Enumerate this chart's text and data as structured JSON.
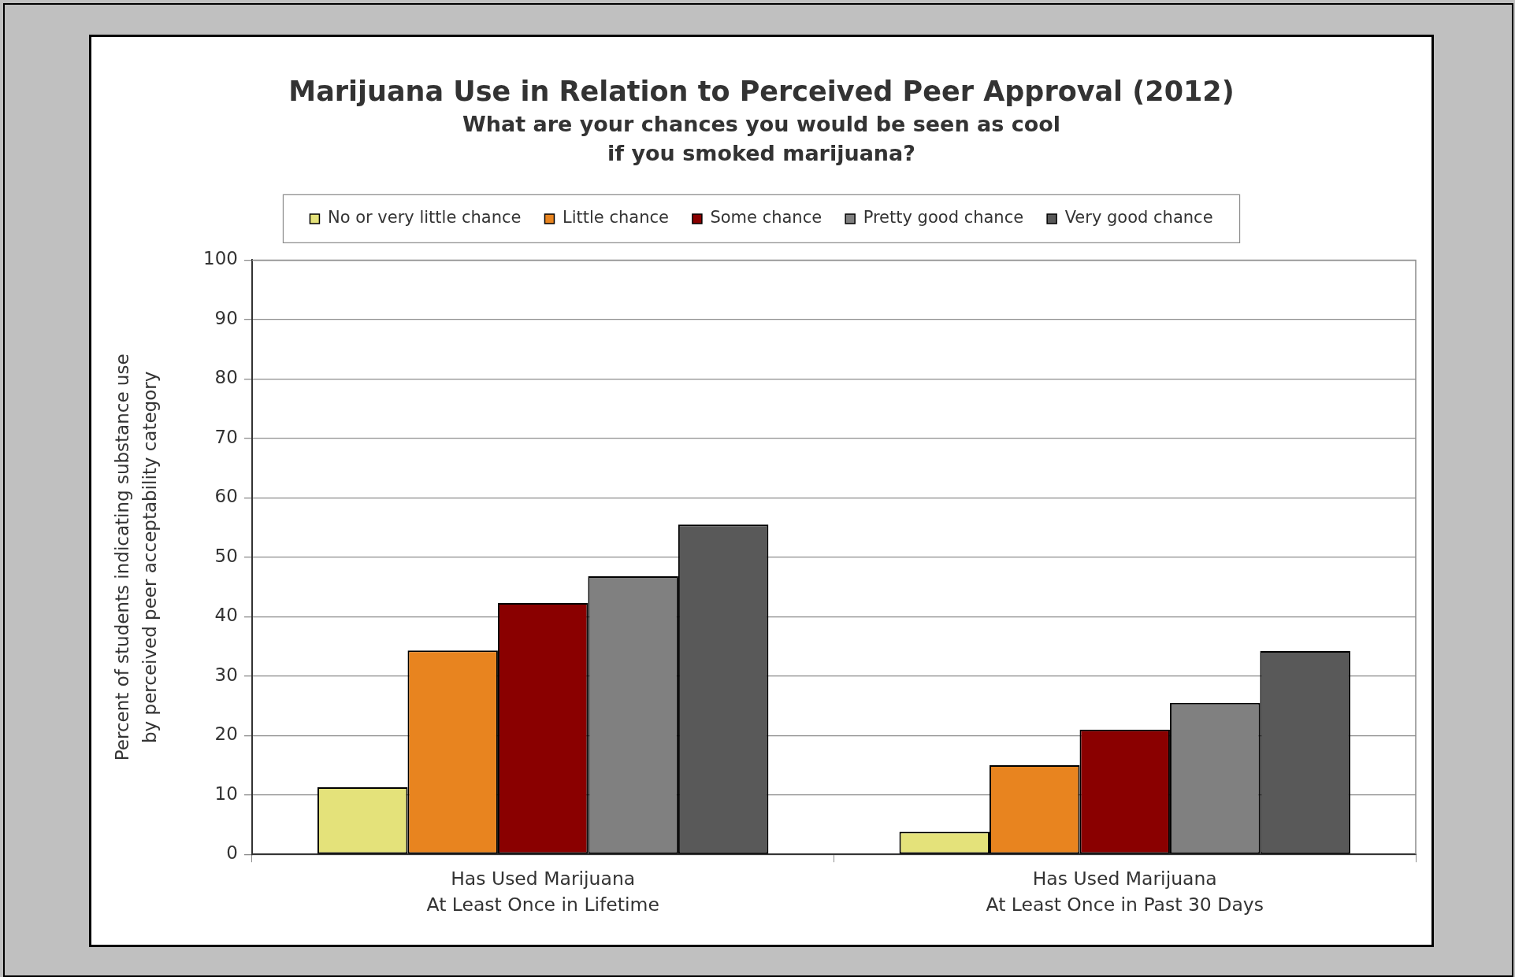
{
  "chart_data": {
    "type": "bar",
    "title": "Marijuana Use in Relation to Perceived Peer Approval (2012)",
    "subtitle": "What are your chances you would be seen as cool\nif you smoked marijuana?",
    "ylabel": "Percent of students indicating substance use\nby perceived peer acceptability category",
    "categories": [
      "Has Used Marijuana\nAt Least Once in Lifetime",
      "Has Used Marijuana\nAt Least Once in Past 30 Days"
    ],
    "series": [
      {
        "name": "No or very little chance",
        "color": "#e4e27a",
        "values": [
          11.3,
          3.8
        ]
      },
      {
        "name": "Little chance",
        "color": "#e8841f",
        "values": [
          34.3,
          15.0
        ]
      },
      {
        "name": "Some chance",
        "color": "#8a0000",
        "values": [
          42.3,
          21.0
        ]
      },
      {
        "name": "Pretty good chance",
        "color": "#808080",
        "values": [
          46.8,
          25.5
        ]
      },
      {
        "name": "Very good chance",
        "color": "#595959",
        "values": [
          55.5,
          34.2
        ]
      }
    ],
    "ylim": [
      0,
      100
    ],
    "yticks": [
      0,
      10,
      20,
      30,
      40,
      50,
      60,
      70,
      80,
      90,
      100
    ],
    "grid": "y",
    "legend": "top"
  }
}
